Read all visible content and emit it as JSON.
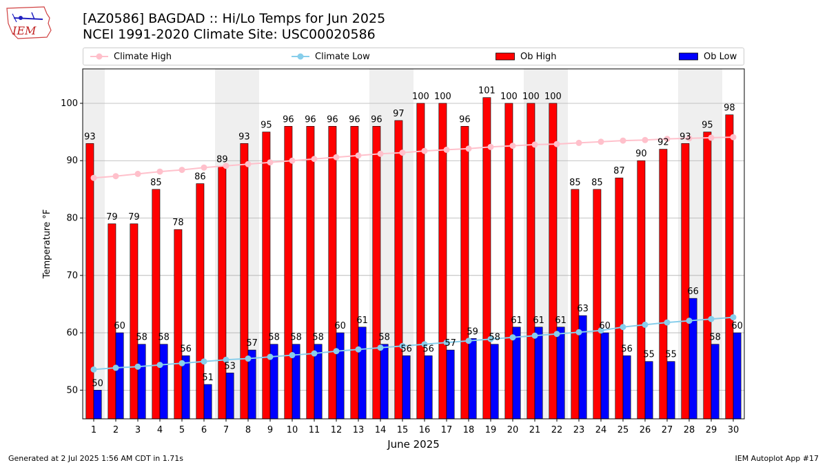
{
  "logo": {
    "text": "IEM"
  },
  "header": {
    "title_line1": "[AZ0586] BAGDAD :: Hi/Lo Temps for Jun 2025",
    "title_line2": "NCEI 1991-2020 Climate Site: USC00020586"
  },
  "footer": {
    "generated": "Generated at 2 Jul 2025 1:56 AM CDT in 1.71s",
    "app": "IEM Autoplot App #17"
  },
  "colors": {
    "ob_high": "#ff0000",
    "ob_low": "#0000ff",
    "climate_high": "#ffc0cb",
    "climate_low": "#87ceeb",
    "weekend_shade": "#efefef",
    "grid": "#b0b0b0"
  },
  "chart_data": {
    "type": "bar",
    "title": "[AZ0586] BAGDAD :: Hi/Lo Temps for Jun 2025",
    "subtitle": "NCEI 1991-2020 Climate Site: USC00020586",
    "xlabel": "June 2025",
    "ylabel": "Temperature °F",
    "ylim": [
      45,
      106
    ],
    "yticks": [
      50,
      60,
      70,
      80,
      90,
      100
    ],
    "grid": true,
    "legend_position": "top",
    "categories": [
      1,
      2,
      3,
      4,
      5,
      6,
      7,
      8,
      9,
      10,
      11,
      12,
      13,
      14,
      15,
      16,
      17,
      18,
      19,
      20,
      21,
      22,
      23,
      24,
      25,
      26,
      27,
      28,
      29,
      30
    ],
    "shaded_days": [
      1,
      7,
      8,
      14,
      15,
      21,
      22,
      28,
      29
    ],
    "series": [
      {
        "name": "Ob High",
        "kind": "bar",
        "values": [
          93,
          79,
          79,
          85,
          78,
          86,
          89,
          93,
          95,
          96,
          96,
          96,
          96,
          96,
          97,
          100,
          100,
          96,
          101,
          100,
          100,
          100,
          85,
          85,
          87,
          90,
          92,
          93,
          95,
          98
        ]
      },
      {
        "name": "Ob Low",
        "kind": "bar",
        "values": [
          50,
          60,
          58,
          58,
          56,
          51,
          53,
          57,
          58,
          58,
          58,
          60,
          61,
          58,
          56,
          56,
          57,
          59,
          58,
          61,
          61,
          61,
          63,
          60,
          56,
          55,
          55,
          66,
          58,
          60
        ]
      },
      {
        "name": "Climate High",
        "kind": "line",
        "values": [
          87.0,
          87.3,
          87.7,
          88.1,
          88.4,
          88.8,
          89.1,
          89.4,
          89.7,
          90.0,
          90.3,
          90.6,
          90.9,
          91.2,
          91.4,
          91.7,
          91.9,
          92.1,
          92.4,
          92.6,
          92.8,
          92.9,
          93.1,
          93.3,
          93.5,
          93.6,
          93.8,
          93.9,
          94.0,
          94.1
        ]
      },
      {
        "name": "Climate Low",
        "kind": "line",
        "values": [
          53.6,
          53.9,
          54.1,
          54.4,
          54.7,
          55.0,
          55.3,
          55.5,
          55.8,
          56.1,
          56.4,
          56.8,
          57.1,
          57.4,
          57.7,
          58.0,
          58.3,
          58.6,
          58.9,
          59.2,
          59.5,
          59.8,
          60.1,
          60.4,
          61.0,
          61.4,
          61.8,
          62.1,
          62.4,
          62.7
        ]
      }
    ]
  }
}
